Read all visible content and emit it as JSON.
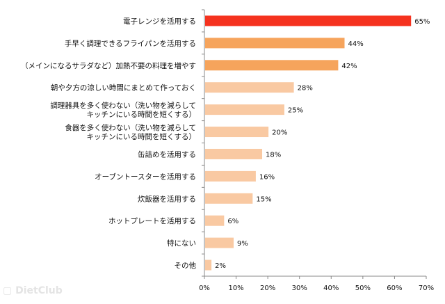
{
  "chart_data": {
    "type": "bar",
    "orientation": "horizontal",
    "categories": [
      [
        "電子レンジを活用する"
      ],
      [
        "手早く調理できるフライパンを活用する"
      ],
      [
        "（メインになるサラダなど）加熱不要の料理を増やす"
      ],
      [
        "朝や夕方の涼しい時間にまとめて作っておく"
      ],
      [
        "調理器具を多く使わない（洗い物を減らして",
        "キッチンにいる時間を短くする）"
      ],
      [
        "食器を多く使わない（洗い物を減らして",
        "キッチンにいる時間を短くする）"
      ],
      [
        "缶詰めを活用する"
      ],
      [
        "オーブントースターを活用する"
      ],
      [
        "炊飯器を活用する"
      ],
      [
        "ホットプレートを活用する"
      ],
      [
        "特にない"
      ],
      [
        "その他"
      ]
    ],
    "values": [
      65,
      44,
      42,
      28,
      25,
      20,
      18,
      16,
      15,
      6,
      9,
      2
    ],
    "value_labels": [
      "65%",
      "44%",
      "42%",
      "28%",
      "25%",
      "20%",
      "18%",
      "16%",
      "15%",
      "6%",
      "9%",
      "2%"
    ],
    "colors": [
      "#f5321e",
      "#f6a45c",
      "#f6a45c",
      "#f9c9a2",
      "#f9c9a2",
      "#f9c9a2",
      "#f9c9a2",
      "#f9c9a2",
      "#f9c9a2",
      "#f9c9a2",
      "#f9c9a2",
      "#f9c9a2"
    ],
    "xticks": [
      "0%",
      "10%",
      "20%",
      "30%",
      "40%",
      "50%",
      "60%",
      "70%"
    ],
    "xlim": [
      0,
      70
    ],
    "title": "",
    "xlabel": "",
    "ylabel": "",
    "grid": false,
    "legend": "none"
  },
  "watermark": "DietClub"
}
